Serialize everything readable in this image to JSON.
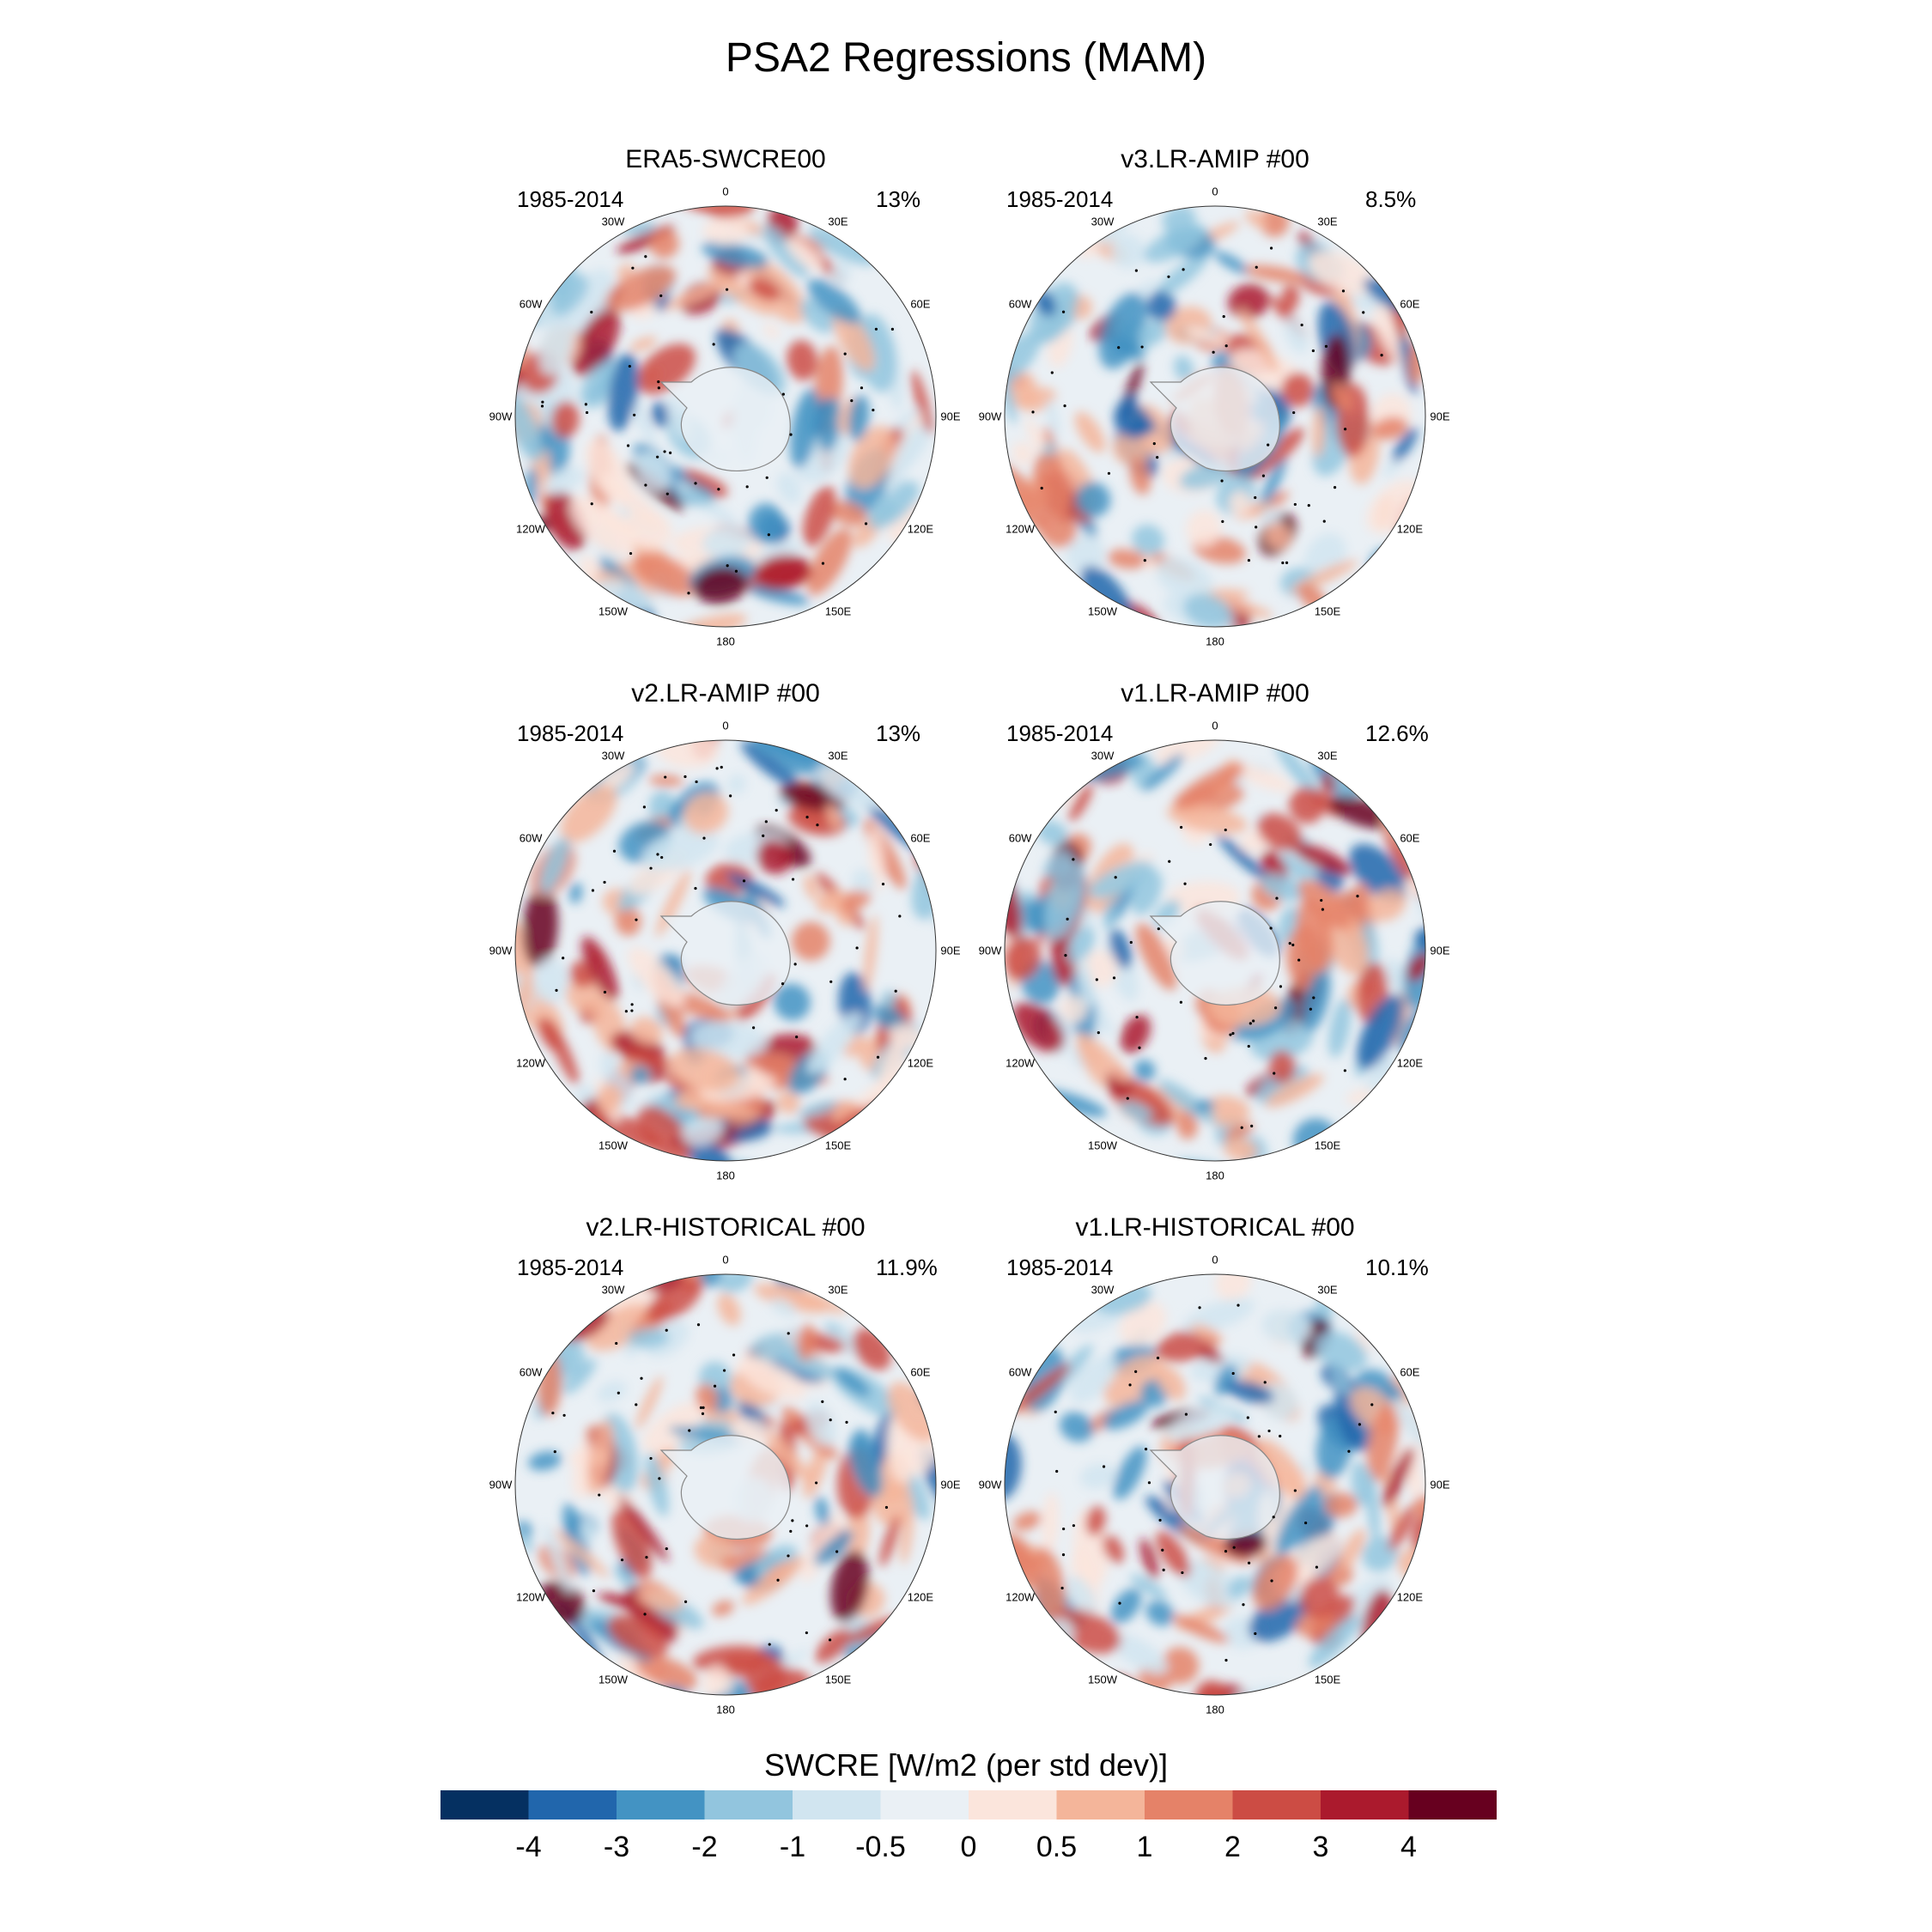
{
  "title": "PSA2 Regressions (MAM)",
  "colorbar": {
    "title": "SWCRE [W/m2 (per std dev)]",
    "labels": [
      "-4",
      "-3",
      "-2",
      "-1",
      "-0.5",
      "0",
      "0.5",
      "1",
      "2",
      "3",
      "4"
    ],
    "colors": [
      "#053061",
      "#2166ac",
      "#4393c3",
      "#92c5de",
      "#d1e5f0",
      "#eaf0f5",
      "#fbe5dc",
      "#f4b59a",
      "#e58268",
      "#cc4c44",
      "#ab1a2d",
      "#67001f"
    ]
  },
  "longitude_labels": [
    "0",
    "30E",
    "60E",
    "90E",
    "120E",
    "150E",
    "180",
    "150W",
    "120W",
    "90W",
    "60W",
    "30W"
  ],
  "panels": [
    {
      "title": "ERA5-SWCRE00",
      "period": "1985-2014",
      "variance": "13%",
      "pattern_seed": 11
    },
    {
      "title": "v3.LR-AMIP  #00",
      "period": "1985-2014",
      "variance": "8.5%",
      "pattern_seed": 23
    },
    {
      "title": "v2.LR-AMIP  #00",
      "period": "1985-2014",
      "variance": "13%",
      "pattern_seed": 37
    },
    {
      "title": "v1.LR-AMIP  #00",
      "period": "1985-2014",
      "variance": "12.6%",
      "pattern_seed": 41
    },
    {
      "title": "v2.LR-HISTORICAL  #00",
      "period": "1985-2014",
      "variance": "11.9%",
      "pattern_seed": 53
    },
    {
      "title": "v1.LR-HISTORICAL  #00",
      "period": "1985-2014",
      "variance": "10.1%",
      "pattern_seed": 67
    }
  ]
}
